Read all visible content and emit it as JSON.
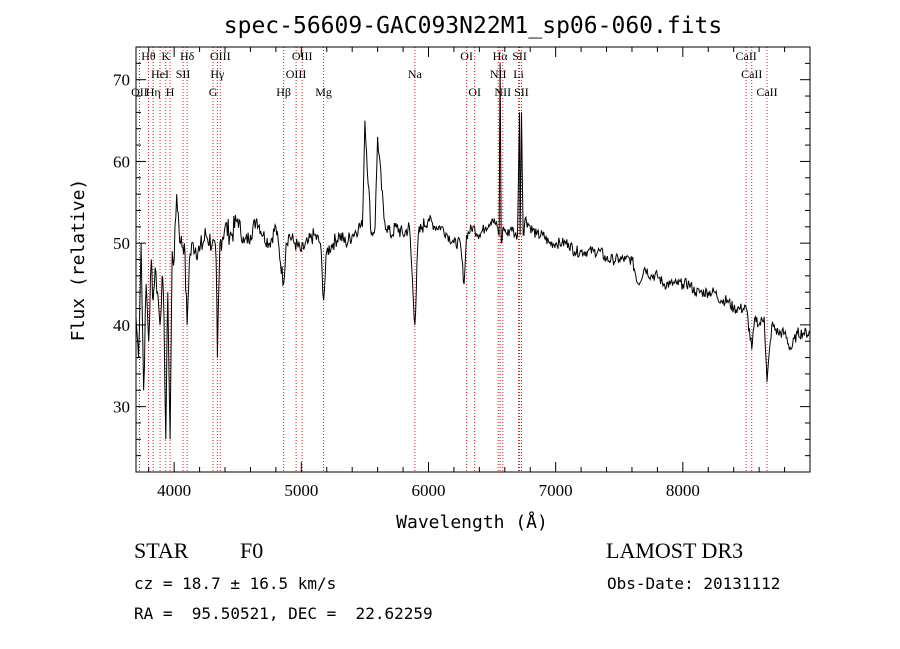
{
  "chart_data": {
    "type": "line",
    "title": "spec-56609-GAC093N22M1_sp06-060.fits",
    "xlabel": "Wavelength (Å)",
    "ylabel": "Flux (relative)",
    "xlim": [
      3700,
      9000
    ],
    "ylim": [
      22,
      74
    ],
    "x_ticks": [
      4000,
      5000,
      6000,
      7000,
      8000
    ],
    "y_ticks": [
      30,
      40,
      50,
      60,
      70
    ],
    "series": [
      {
        "name": "flux",
        "x": [
          3700,
          3720,
          3740,
          3760,
          3780,
          3800,
          3820,
          3835,
          3850,
          3870,
          3889,
          3905,
          3920,
          3934,
          3950,
          3968,
          3985,
          4000,
          4020,
          4050,
          4080,
          4102,
          4120,
          4150,
          4200,
          4250,
          4300,
          4330,
          4340,
          4360,
          4400,
          4450,
          4500,
          4550,
          4600,
          4650,
          4700,
          4750,
          4800,
          4861,
          4880,
          4900,
          4950,
          5000,
          5050,
          5100,
          5150,
          5175,
          5200,
          5250,
          5300,
          5350,
          5400,
          5450,
          5480,
          5500,
          5550,
          5580,
          5600,
          5650,
          5700,
          5750,
          5800,
          5850,
          5893,
          5920,
          5950,
          6000,
          6050,
          6100,
          6150,
          6200,
          6250,
          6280,
          6300,
          6350,
          6400,
          6450,
          6500,
          6540,
          6555,
          6563,
          6572,
          6590,
          6620,
          6650,
          6680,
          6700,
          6716,
          6720,
          6731,
          6745,
          6760,
          6800,
          6850,
          6900,
          6950,
          7000,
          7050,
          7100,
          7150,
          7200,
          7250,
          7300,
          7350,
          7400,
          7450,
          7500,
          7550,
          7600,
          7650,
          7700,
          7750,
          7800,
          7850,
          7900,
          7950,
          8000,
          8050,
          8100,
          8150,
          8200,
          8250,
          8300,
          8350,
          8400,
          8450,
          8500,
          8542,
          8570,
          8600,
          8640,
          8662,
          8700,
          8750,
          8800,
          8850,
          8900,
          8950,
          9000
        ],
        "y": [
          41,
          36,
          50,
          32,
          45,
          38,
          48,
          43,
          47,
          44,
          40,
          46,
          41,
          26,
          44,
          26,
          49,
          48,
          56,
          50,
          50,
          40,
          48,
          50,
          49,
          51,
          50,
          48,
          36,
          50,
          52,
          51,
          53,
          50,
          51,
          53,
          51,
          50,
          52,
          45,
          50,
          51,
          50,
          49,
          50,
          51,
          50,
          43,
          49,
          50,
          51,
          50,
          51,
          52,
          52,
          65,
          51,
          52,
          63,
          53,
          51,
          52,
          51,
          52,
          40,
          51,
          52,
          53,
          52,
          52,
          51,
          50,
          50,
          45,
          51,
          52,
          51,
          52,
          53,
          52,
          51,
          72,
          50,
          52,
          51,
          52,
          51,
          51,
          66,
          51,
          66,
          51,
          53,
          52,
          51,
          51,
          50,
          50,
          50,
          50,
          49,
          49,
          49,
          49,
          49,
          48,
          48,
          48,
          48,
          48,
          45,
          47,
          46,
          46,
          45,
          45,
          45,
          45,
          45,
          44,
          44,
          44,
          44,
          43,
          43,
          42,
          42,
          42,
          37,
          41,
          40,
          41,
          33,
          40,
          39,
          39,
          37,
          39,
          39,
          39
        ]
      }
    ],
    "spectral_lines": [
      {
        "label": "OII",
        "x": 3727,
        "row": 2
      },
      {
        "label": "Hθ",
        "x": 3798,
        "row": 0
      },
      {
        "label": "Hη",
        "x": 3835,
        "row": 2
      },
      {
        "label": "HeI",
        "x": 3889,
        "row": 1
      },
      {
        "label": "K",
        "x": 3934,
        "row": 0
      },
      {
        "label": "SII",
        "x": 4070,
        "row": 1
      },
      {
        "label": "H",
        "x": 3968,
        "row": 2
      },
      {
        "label": "Hδ",
        "x": 4102,
        "row": 0
      },
      {
        "label": "G",
        "x": 4306,
        "row": 2
      },
      {
        "label": "OIII",
        "x": 4363,
        "row": 0
      },
      {
        "label": "Hγ",
        "x": 4340,
        "row": 1
      },
      {
        "label": "Hβ",
        "x": 4861,
        "row": 2
      },
      {
        "label": "OIII",
        "x": 5007,
        "row": 0
      },
      {
        "label": "OIII",
        "x": 4959,
        "row": 1
      },
      {
        "label": "Mg",
        "x": 5175,
        "row": 2
      },
      {
        "label": "Na",
        "x": 5893,
        "row": 1
      },
      {
        "label": "OI",
        "x": 6300,
        "row": 0
      },
      {
        "label": "OI",
        "x": 6363,
        "row": 2
      },
      {
        "label": "Hα",
        "x": 6563,
        "row": 0
      },
      {
        "label": "NII",
        "x": 6548,
        "row": 1
      },
      {
        "label": "NII",
        "x": 6584,
        "row": 2
      },
      {
        "label": "SII",
        "x": 6716,
        "row": 0
      },
      {
        "label": "Li",
        "x": 6708,
        "row": 1
      },
      {
        "label": "SII",
        "x": 6731,
        "row": 2
      },
      {
        "label": "CaII",
        "x": 8498,
        "row": 0
      },
      {
        "label": "CaII",
        "x": 8542,
        "row": 1
      },
      {
        "label": "CaII",
        "x": 8662,
        "row": 2
      }
    ]
  },
  "info": {
    "object_class": "STAR",
    "subclass": "F0",
    "survey": "LAMOST DR3",
    "redshift": "cz = 18.7 ± 16.5 km/s",
    "obs_date": "Obs-Date: 20131112",
    "coords": "RA =  95.50521, DEC =  22.62259"
  }
}
